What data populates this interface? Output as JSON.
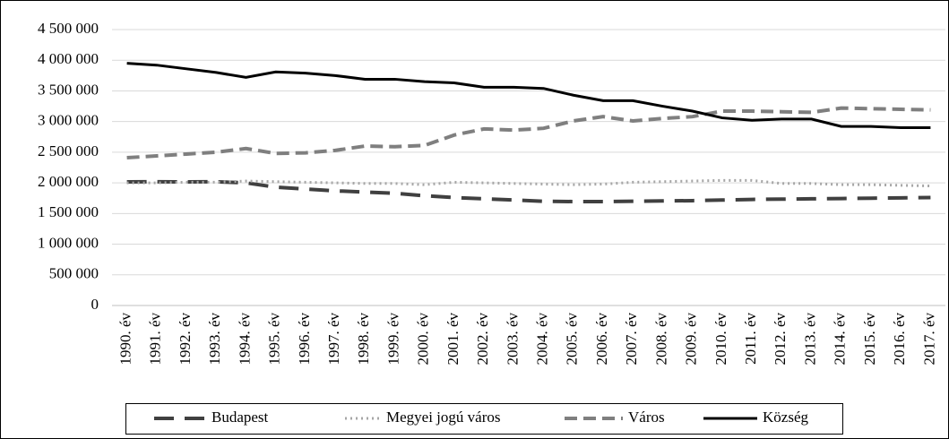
{
  "chart_data": {
    "type": "line",
    "categories": [
      "1990. év",
      "1991. év",
      "1992. év",
      "1993. év",
      "1994. év",
      "1995. év",
      "1996. év",
      "1997. év",
      "1998. év",
      "1999. év",
      "2000. év",
      "2001. év",
      "2002. év",
      "2003. év",
      "2004. év",
      "2005. év",
      "2006. év",
      "2007. év",
      "2008. év",
      "2009. év",
      "2010. év",
      "2011. év",
      "2012. év",
      "2013. év",
      "2014. év",
      "2015. év",
      "2016. év",
      "2017. év"
    ],
    "series": [
      {
        "name": "Budapest",
        "color": "#404040",
        "line_style": "long-dash",
        "values": [
          2017000,
          2018000,
          2016000,
          2018000,
          2000000,
          1930000,
          1900000,
          1870000,
          1850000,
          1830000,
          1790000,
          1760000,
          1740000,
          1720000,
          1700000,
          1695000,
          1695000,
          1700000,
          1705000,
          1710000,
          1720000,
          1730000,
          1735000,
          1740000,
          1745000,
          1750000,
          1755000,
          1760000
        ]
      },
      {
        "name": "Megyei jogú város",
        "color": "#a6a6a6",
        "line_style": "dot",
        "values": [
          2000000,
          2000000,
          2010000,
          2010000,
          2030000,
          2020000,
          2010000,
          2000000,
          1990000,
          1990000,
          1970000,
          2010000,
          2000000,
          1990000,
          1980000,
          1970000,
          1980000,
          2010000,
          2020000,
          2030000,
          2040000,
          2040000,
          1990000,
          1990000,
          1970000,
          1970000,
          1960000,
          1950000
        ]
      },
      {
        "name": "Város",
        "color": "#7f7f7f",
        "line_style": "dash",
        "values": [
          2410000,
          2440000,
          2470000,
          2500000,
          2560000,
          2480000,
          2490000,
          2530000,
          2600000,
          2590000,
          2610000,
          2780000,
          2880000,
          2860000,
          2890000,
          3010000,
          3080000,
          3010000,
          3050000,
          3080000,
          3170000,
          3170000,
          3160000,
          3150000,
          3220000,
          3210000,
          3200000,
          3190000
        ]
      },
      {
        "name": "Község",
        "color": "#000000",
        "line_style": "solid",
        "values": [
          3950000,
          3920000,
          3860000,
          3800000,
          3720000,
          3810000,
          3790000,
          3750000,
          3690000,
          3690000,
          3650000,
          3630000,
          3560000,
          3560000,
          3540000,
          3430000,
          3340000,
          3340000,
          3250000,
          3170000,
          3060000,
          3020000,
          3040000,
          3040000,
          2920000,
          2920000,
          2900000,
          2900000
        ]
      }
    ],
    "ylim": [
      0,
      4500000
    ],
    "yticks": [
      0,
      {
        "value": 500000,
        "label": "500 000"
      },
      {
        "value": 1000000,
        "label": "1 000 000"
      },
      {
        "value": 1500000,
        "label": "1 500 000"
      },
      {
        "value": 2000000,
        "label": "2 000 000"
      },
      {
        "value": 2500000,
        "label": "2 500 000"
      },
      {
        "value": 3000000,
        "label": "3 000 000"
      },
      {
        "value": 3500000,
        "label": "3 500 000"
      },
      {
        "value": 4000000,
        "label": "4 000 000"
      },
      {
        "value": 4500000,
        "label": "4 500 000"
      }
    ],
    "grid": true,
    "legend": "bottom"
  }
}
